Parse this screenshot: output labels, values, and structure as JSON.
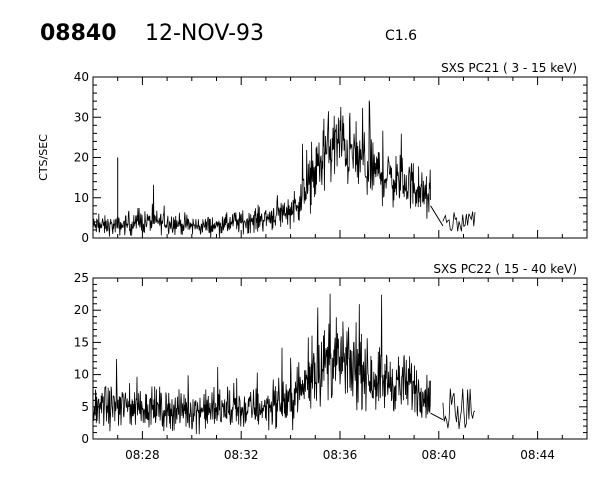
{
  "header": {
    "event_id": "08840",
    "date": "12-NOV-93",
    "goes_class": "C1.6"
  },
  "chart_data": [
    {
      "type": "line",
      "title": "SXS PC21  (  3 - 15 keV)",
      "ylabel": "CTS/SEC",
      "xlabel": "",
      "xlim": [
        "08:26",
        "08:46"
      ],
      "ylim": [
        0,
        40
      ],
      "yticks": [
        0,
        10,
        20,
        30,
        40
      ],
      "xticks": [
        "08:28",
        "08:32",
        "08:36",
        "08:40",
        "08:44"
      ],
      "grid": false,
      "envelope": [
        {
          "t": "08:26:00",
          "y": 3
        },
        {
          "t": "08:27:00",
          "y": 3
        },
        {
          "t": "08:28:00",
          "y": 4
        },
        {
          "t": "08:29:00",
          "y": 4
        },
        {
          "t": "08:30:00",
          "y": 3
        },
        {
          "t": "08:31:00",
          "y": 3
        },
        {
          "t": "08:32:00",
          "y": 4
        },
        {
          "t": "08:33:00",
          "y": 5
        },
        {
          "t": "08:34:00",
          "y": 7
        },
        {
          "t": "08:34:30",
          "y": 10
        },
        {
          "t": "08:35:00",
          "y": 16
        },
        {
          "t": "08:35:30",
          "y": 22
        },
        {
          "t": "08:36:00",
          "y": 24
        },
        {
          "t": "08:36:30",
          "y": 21
        },
        {
          "t": "08:37:00",
          "y": 18
        },
        {
          "t": "08:38:00",
          "y": 15
        },
        {
          "t": "08:39:00",
          "y": 13
        },
        {
          "t": "08:39:40",
          "y": 9
        }
      ],
      "spikes": [
        {
          "t": "08:27:00",
          "y": 20
        }
      ],
      "data_gap": {
        "from": "08:39:40",
        "to": "08:40:10",
        "y_from": 8,
        "y_to": 3
      },
      "tail": {
        "from": "08:40:10",
        "to": "08:41:30",
        "y": 4
      }
    },
    {
      "type": "line",
      "title": "SXS PC22  ( 15 - 40 keV)",
      "ylabel": "",
      "xlabel": "",
      "xlim": [
        "08:26",
        "08:46"
      ],
      "ylim": [
        0,
        25
      ],
      "yticks": [
        0,
        5,
        10,
        15,
        20,
        25
      ],
      "xticks": [
        "08:28",
        "08:32",
        "08:36",
        "08:40",
        "08:44"
      ],
      "grid": false,
      "envelope": [
        {
          "t": "08:26:00",
          "y": 5
        },
        {
          "t": "08:27:00",
          "y": 5
        },
        {
          "t": "08:28:00",
          "y": 5
        },
        {
          "t": "08:29:00",
          "y": 4.5
        },
        {
          "t": "08:30:00",
          "y": 4.5
        },
        {
          "t": "08:31:00",
          "y": 4.5
        },
        {
          "t": "08:32:00",
          "y": 4.5
        },
        {
          "t": "08:33:00",
          "y": 5
        },
        {
          "t": "08:34:00",
          "y": 6
        },
        {
          "t": "08:34:30",
          "y": 8
        },
        {
          "t": "08:35:00",
          "y": 11
        },
        {
          "t": "08:35:30",
          "y": 12
        },
        {
          "t": "08:36:00",
          "y": 12
        },
        {
          "t": "08:37:00",
          "y": 10
        },
        {
          "t": "08:38:00",
          "y": 9
        },
        {
          "t": "08:39:00",
          "y": 8
        },
        {
          "t": "08:39:40",
          "y": 6
        }
      ],
      "spikes": [],
      "data_gap": {
        "from": "08:39:40",
        "to": "08:40:10",
        "y_from": 4,
        "y_to": 3
      },
      "tail": {
        "from": "08:40:10",
        "to": "08:41:30",
        "y": 5
      }
    }
  ]
}
